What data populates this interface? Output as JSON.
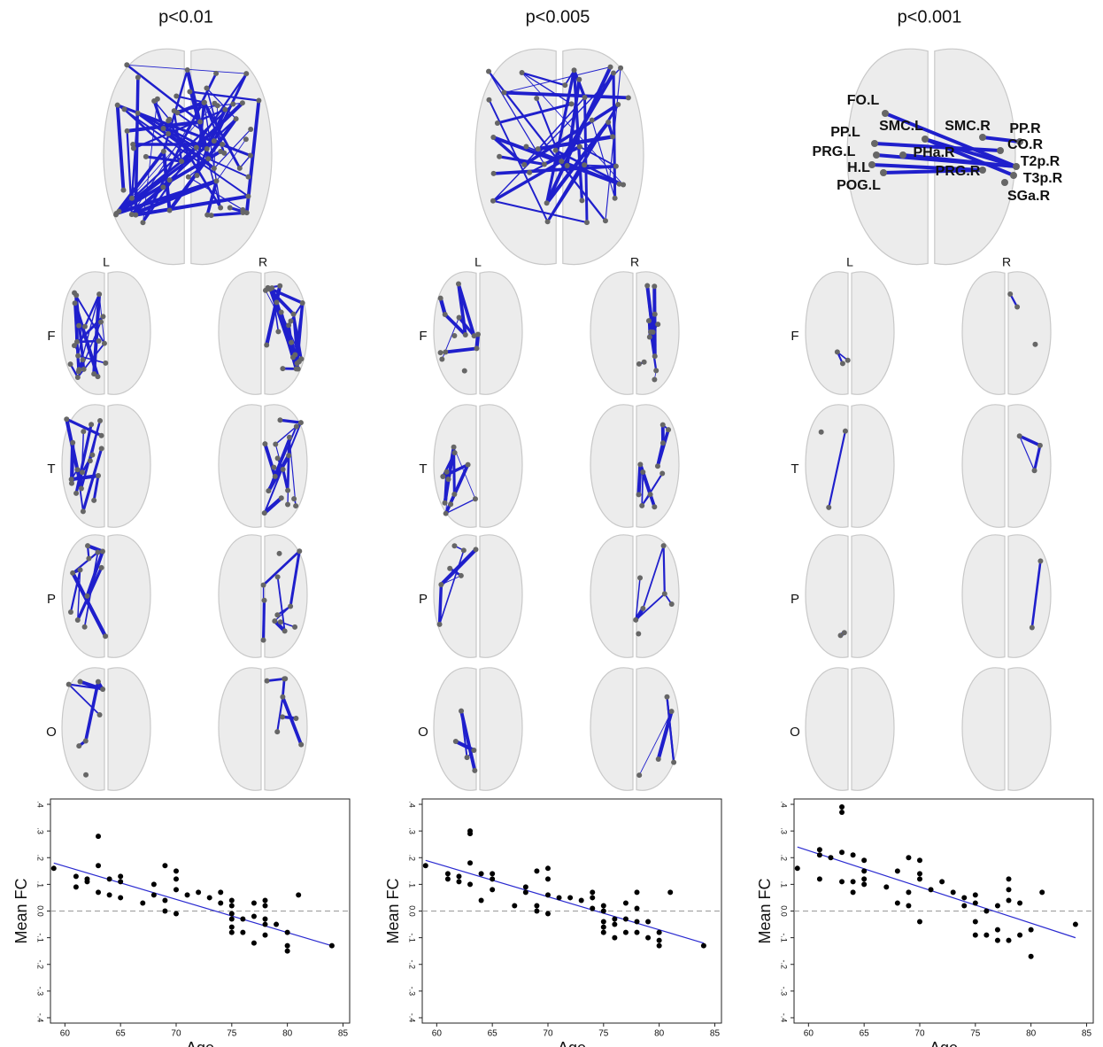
{
  "brain_panels": [
    {
      "title": "p<0.01",
      "hemispheres": [
        "L",
        "R"
      ],
      "lobes": [
        "F",
        "T",
        "P",
        "O"
      ]
    },
    {
      "title": "p<0.005",
      "hemispheres": [
        "L",
        "R"
      ],
      "lobes": [
        "F",
        "T",
        "P",
        "O"
      ]
    },
    {
      "title": "p<0.001",
      "hemispheres": [
        "L",
        "R"
      ],
      "lobes": [
        "F",
        "T",
        "P",
        "O"
      ],
      "node_labels": [
        "FO.L",
        "SMC.L",
        "SMC.R",
        "PP.R",
        "PP.L",
        "CO.R",
        "PRG.L",
        "PHa.R",
        "T2p.R",
        "H.L",
        "PRG.R",
        "T3p.R",
        "POG.L",
        "SGa.R"
      ]
    }
  ],
  "chart_data": [
    {
      "type": "scatter",
      "x_label": "Age",
      "y_label": "Mean FC",
      "color": "#000000",
      "fit_color": "#2a2ad0",
      "reference_line": 0,
      "xlim": [
        58.7,
        85.6
      ],
      "xticks": [
        60,
        65,
        70,
        75,
        80,
        85
      ],
      "ylim": [
        -0.42,
        0.42
      ],
      "yticks": [
        {
          "value": -0.4,
          "label": "-.4"
        },
        {
          "value": -0.3,
          "label": "-.3"
        },
        {
          "value": -0.2,
          "label": "-.2"
        },
        {
          "value": -0.1,
          "label": "-.1"
        },
        {
          "value": 0,
          "label": "0.0"
        },
        {
          "value": 0.1,
          "label": ".1"
        },
        {
          "value": 0.2,
          "label": ".2"
        },
        {
          "value": 0.3,
          "label": ".3"
        },
        {
          "value": 0.4,
          "label": ".4"
        }
      ],
      "x": [
        59,
        61,
        61,
        62,
        62,
        63,
        63,
        63,
        64,
        64,
        65,
        65,
        65,
        67,
        68,
        68,
        69,
        69,
        69,
        70,
        70,
        70,
        70,
        71,
        72,
        73,
        74,
        74,
        75,
        75,
        75,
        75,
        75,
        75,
        76,
        76,
        77,
        77,
        77,
        78,
        78,
        78,
        78,
        78,
        79,
        80,
        80,
        80,
        81,
        84
      ],
      "values": [
        0.16,
        0.13,
        0.09,
        0.12,
        0.11,
        0.28,
        0.17,
        0.07,
        0.12,
        0.06,
        0.13,
        0.11,
        0.05,
        0.03,
        0.1,
        0.06,
        0.17,
        0.04,
        0,
        0.15,
        0.12,
        0.08,
        -0.01,
        0.06,
        0.07,
        0.05,
        0.07,
        0.03,
        0.04,
        0.02,
        -0.01,
        -0.03,
        -0.06,
        -0.08,
        -0.03,
        -0.08,
        0.03,
        -0.02,
        -0.12,
        0.04,
        0.02,
        -0.03,
        -0.05,
        -0.09,
        -0.05,
        -0.08,
        -0.13,
        -0.15,
        0.06,
        -0.13
      ],
      "fit": {
        "x": [
          59,
          84
        ],
        "values": [
          0.18,
          -0.13
        ]
      }
    },
    {
      "type": "scatter",
      "x_label": "Age",
      "y_label": "Mean FC",
      "color": "#000000",
      "fit_color": "#2a2ad0",
      "reference_line": 0,
      "xlim": [
        58.7,
        85.6
      ],
      "xticks": [
        60,
        65,
        70,
        75,
        80,
        85
      ],
      "ylim": [
        -0.42,
        0.42
      ],
      "yticks": [
        {
          "value": -0.4,
          "label": "-.4"
        },
        {
          "value": -0.3,
          "label": "-.3"
        },
        {
          "value": -0.2,
          "label": "-.2"
        },
        {
          "value": -0.1,
          "label": "-.1"
        },
        {
          "value": 0,
          "label": "0.0"
        },
        {
          "value": 0.1,
          "label": ".1"
        },
        {
          "value": 0.2,
          "label": ".2"
        },
        {
          "value": 0.3,
          "label": ".3"
        },
        {
          "value": 0.4,
          "label": ".4"
        }
      ],
      "x": [
        59,
        61,
        61,
        62,
        62,
        63,
        63,
        63,
        63,
        64,
        64,
        65,
        65,
        65,
        67,
        68,
        68,
        69,
        69,
        69,
        70,
        70,
        70,
        70,
        71,
        72,
        73,
        74,
        74,
        74,
        75,
        75,
        75,
        75,
        75,
        76,
        76,
        76,
        77,
        77,
        77,
        78,
        78,
        78,
        78,
        79,
        79,
        80,
        80,
        80,
        81,
        84
      ],
      "values": [
        0.17,
        0.14,
        0.12,
        0.13,
        0.11,
        0.3,
        0.29,
        0.18,
        0.1,
        0.14,
        0.04,
        0.14,
        0.12,
        0.08,
        0.02,
        0.09,
        0.07,
        0.15,
        0.02,
        0,
        0.16,
        0.12,
        0.06,
        -0.01,
        0.05,
        0.05,
        0.04,
        0.07,
        0.05,
        0.01,
        0.02,
        0,
        -0.04,
        -0.06,
        -0.08,
        -0.03,
        -0.05,
        -0.1,
        0.03,
        -0.03,
        -0.08,
        0.07,
        0.01,
        -0.04,
        -0.08,
        -0.04,
        -0.1,
        -0.08,
        -0.11,
        -0.13,
        0.07,
        -0.13
      ],
      "fit": {
        "x": [
          59,
          84
        ],
        "values": [
          0.19,
          -0.12
        ]
      }
    },
    {
      "type": "scatter",
      "x_label": "Age",
      "y_label": "Mean FC",
      "color": "#000000",
      "fit_color": "#2a2ad0",
      "reference_line": 0,
      "xlim": [
        58.7,
        85.6
      ],
      "xticks": [
        60,
        65,
        70,
        75,
        80,
        85
      ],
      "ylim": [
        -0.42,
        0.42
      ],
      "yticks": [
        {
          "value": -0.4,
          "label": "-.4"
        },
        {
          "value": -0.3,
          "label": "-.3"
        },
        {
          "value": -0.2,
          "label": "-.2"
        },
        {
          "value": -0.1,
          "label": "-.1"
        },
        {
          "value": 0,
          "label": "0.0"
        },
        {
          "value": 0.1,
          "label": ".1"
        },
        {
          "value": 0.2,
          "label": ".2"
        },
        {
          "value": 0.3,
          "label": ".3"
        },
        {
          "value": 0.4,
          "label": ".4"
        }
      ],
      "x": [
        59,
        61,
        61,
        61,
        62,
        63,
        63,
        63,
        63,
        64,
        64,
        64,
        65,
        65,
        65,
        65,
        67,
        68,
        68,
        69,
        69,
        69,
        70,
        70,
        70,
        70,
        71,
        72,
        73,
        74,
        74,
        75,
        75,
        75,
        75,
        76,
        76,
        77,
        77,
        77,
        78,
        78,
        78,
        78,
        79,
        79,
        80,
        80,
        81,
        84
      ],
      "values": [
        0.16,
        0.23,
        0.21,
        0.12,
        0.2,
        0.39,
        0.37,
        0.22,
        0.11,
        0.21,
        0.07,
        0.11,
        0.19,
        0.15,
        0.12,
        0.1,
        0.09,
        0.15,
        0.03,
        0.2,
        0.07,
        0.02,
        0.19,
        0.14,
        0.12,
        -0.04,
        0.08,
        0.11,
        0.07,
        0.05,
        0.02,
        0.06,
        0.03,
        -0.04,
        -0.09,
        0,
        -0.09,
        0.02,
        -0.07,
        -0.11,
        0.12,
        0.08,
        0.04,
        -0.11,
        0.03,
        -0.09,
        -0.07,
        -0.17,
        0.07,
        -0.05
      ],
      "fit": {
        "x": [
          59,
          84
        ],
        "values": [
          0.24,
          -0.1
        ]
      }
    }
  ]
}
